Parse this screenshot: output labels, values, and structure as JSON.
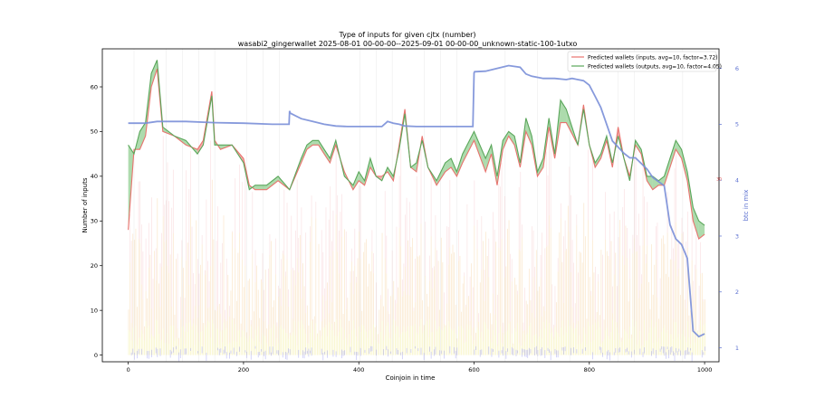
{
  "chart_data": {
    "type": "line",
    "title": "Type of inputs for given cjtx (number)",
    "subtitle": "wasabi2_gingerwallet 2025-08-01 00-00-00--2025-09-01 00-00-00_unknown-static-100-1utxo",
    "xlabel": "Coinjoin in time",
    "ylabel": "Number of inputs",
    "y2label": "btc in mix",
    "xlim": [
      -45,
      1025
    ],
    "ylim": [
      -1.5,
      68.5
    ],
    "y2lim": [
      0.75,
      6.35
    ],
    "x_ticks": [
      0,
      200,
      400,
      600,
      800,
      1000
    ],
    "y_ticks": [
      0,
      10,
      20,
      30,
      40,
      50,
      60
    ],
    "y2_ticks": [
      1,
      2,
      3,
      4,
      5,
      6
    ],
    "grid": true,
    "legend_position": "top-right",
    "colors": {
      "inputs": "#e8736e",
      "outputs": "#5aa65a",
      "inputs_fill": "#f05a5a",
      "outputs_fill": "#5cb85c",
      "btc": "#7a8fd8",
      "bars_orange": "#f5c78a",
      "bars_pink": "#f6c8cc",
      "bars_yellow": "#f4ec9a",
      "bars_blue": "#8c8cf0",
      "marker": "#e05050"
    },
    "series": [
      {
        "name": "Predicted wallets (inputs, avg=10, factor=3.72)",
        "x": [
          0,
          10,
          20,
          30,
          40,
          50,
          60,
          80,
          100,
          120,
          130,
          145,
          150,
          160,
          180,
          200,
          210,
          220,
          240,
          260,
          280,
          300,
          310,
          320,
          330,
          340,
          350,
          360,
          375,
          390,
          400,
          410,
          420,
          430,
          440,
          450,
          460,
          470,
          480,
          490,
          500,
          510,
          520,
          535,
          550,
          560,
          570,
          580,
          600,
          620,
          630,
          640,
          650,
          660,
          670,
          680,
          690,
          700,
          710,
          720,
          730,
          740,
          750,
          760,
          780,
          790,
          800,
          810,
          820,
          830,
          840,
          850,
          860,
          870,
          880,
          890,
          900,
          910,
          920,
          930,
          940,
          950,
          960,
          970,
          980,
          990,
          1000
        ],
        "values": [
          28,
          46,
          46,
          49,
          60,
          64,
          50,
          49,
          47,
          46,
          48,
          59,
          48,
          46,
          47,
          44,
          38,
          37,
          37,
          39,
          37,
          43,
          46,
          47,
          47,
          45,
          43,
          47,
          41,
          37,
          39,
          38,
          42,
          40,
          40,
          41,
          39,
          47,
          55,
          42,
          41,
          49,
          42,
          38,
          41,
          42,
          40,
          43,
          48,
          41,
          45,
          38,
          46,
          49,
          47,
          42,
          50,
          47,
          40,
          42,
          51,
          44,
          52,
          52,
          47,
          56,
          47,
          42,
          44,
          48,
          42,
          51,
          44,
          40,
          47,
          45,
          39,
          37,
          38,
          38,
          42,
          46,
          44,
          39,
          30,
          26,
          27
        ]
      },
      {
        "name": "Predicted wallets (outputs, avg=10, factor=4.05)",
        "x": [
          0,
          10,
          20,
          30,
          40,
          50,
          60,
          80,
          100,
          120,
          130,
          145,
          150,
          160,
          180,
          200,
          210,
          220,
          240,
          260,
          280,
          300,
          310,
          320,
          330,
          340,
          350,
          360,
          375,
          390,
          400,
          410,
          420,
          430,
          440,
          450,
          460,
          470,
          480,
          490,
          500,
          510,
          520,
          535,
          550,
          560,
          570,
          580,
          600,
          620,
          630,
          640,
          650,
          660,
          670,
          680,
          690,
          700,
          710,
          720,
          730,
          740,
          750,
          760,
          780,
          790,
          800,
          810,
          820,
          830,
          840,
          850,
          860,
          870,
          880,
          890,
          900,
          910,
          920,
          930,
          940,
          950,
          960,
          970,
          980,
          990,
          1000
        ],
        "values": [
          47,
          45,
          50,
          52,
          63,
          66,
          51,
          49,
          48,
          45,
          47,
          58,
          47,
          47,
          47,
          43,
          37,
          38,
          38,
          40,
          37,
          44,
          47,
          48,
          48,
          46,
          44,
          48,
          40,
          38,
          41,
          39,
          44,
          40,
          39,
          42,
          40,
          46,
          54,
          42,
          43,
          48,
          42,
          39,
          43,
          44,
          41,
          45,
          50,
          44,
          47,
          40,
          48,
          50,
          49,
          43,
          53,
          49,
          41,
          44,
          53,
          45,
          57,
          55,
          47,
          55,
          47,
          43,
          45,
          49,
          43,
          49,
          44,
          39,
          48,
          46,
          40,
          40,
          39,
          40,
          44,
          48,
          46,
          41,
          33,
          30,
          29
        ]
      },
      {
        "name": "btc in mix",
        "axis": "right",
        "x": [
          0,
          30,
          50,
          100,
          150,
          200,
          250,
          279,
          280,
          281,
          300,
          320,
          340,
          360,
          380,
          400,
          420,
          440,
          450,
          460,
          470,
          480,
          500,
          520,
          560,
          598,
          600,
          601,
          620,
          640,
          660,
          680,
          690,
          700,
          720,
          740,
          760,
          770,
          780,
          790,
          800,
          810,
          820,
          840,
          860,
          870,
          880,
          900,
          910,
          930,
          940,
          950,
          960,
          970,
          980,
          990,
          1000
        ],
        "values": [
          5.02,
          5.02,
          5.05,
          5.05,
          5.03,
          5.02,
          5.0,
          5.0,
          5.24,
          5.2,
          5.1,
          5.05,
          5.0,
          4.97,
          4.96,
          4.96,
          4.96,
          4.96,
          5.05,
          5.02,
          5.0,
          4.97,
          4.96,
          4.96,
          4.96,
          4.96,
          5.92,
          5.94,
          5.95,
          6.0,
          6.05,
          6.02,
          5.9,
          5.86,
          5.82,
          5.82,
          5.8,
          5.82,
          5.8,
          5.78,
          5.7,
          5.5,
          5.3,
          4.7,
          4.48,
          4.4,
          4.4,
          4.2,
          4.05,
          3.9,
          3.2,
          2.95,
          2.85,
          2.6,
          1.3,
          1.2,
          1.25
        ]
      }
    ],
    "annotations": [
      {
        "x": 1025,
        "y": 39.5,
        "label": "30"
      }
    ]
  }
}
